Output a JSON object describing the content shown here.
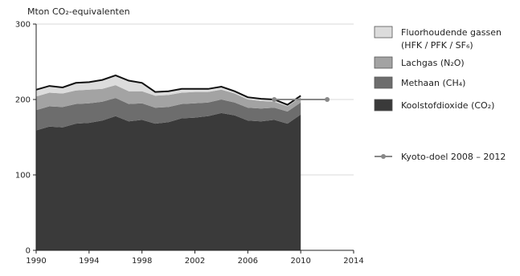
{
  "chart_data": {
    "type": "area",
    "stacked": true,
    "ylabel": "Mton CO₂-equivalenten",
    "xlim": [
      1990,
      2014
    ],
    "ylim": [
      0,
      300
    ],
    "x_ticks": [
      1990,
      1994,
      1998,
      2002,
      2006,
      2010,
      2014
    ],
    "y_ticks": [
      0,
      100,
      200,
      300
    ],
    "grid": true,
    "legend_position": "right",
    "x": [
      1990,
      1991,
      1992,
      1993,
      1994,
      1995,
      1996,
      1997,
      1998,
      1999,
      2000,
      2001,
      2002,
      2003,
      2004,
      2005,
      2006,
      2007,
      2008,
      2009,
      2010
    ],
    "series": [
      {
        "name": "Koolstofdioxide (CO₂)",
        "color": "#3a3a3a",
        "values": [
          159,
          164,
          163,
          168,
          169,
          172,
          178,
          171,
          173,
          168,
          170,
          175,
          176,
          178,
          182,
          179,
          172,
          171,
          173,
          168,
          180
        ]
      },
      {
        "name": "Methaan (CH₄)",
        "color": "#6d6d6d",
        "values": [
          27,
          27,
          27,
          26,
          26,
          25,
          24,
          23,
          22,
          21,
          20,
          19,
          19,
          18,
          18,
          17,
          17,
          17,
          16,
          16,
          16
        ]
      },
      {
        "name": "Lachgas (N₂O)",
        "color": "#a3a3a3",
        "values": [
          18,
          18,
          18,
          18,
          18,
          17,
          17,
          17,
          16,
          16,
          16,
          15,
          15,
          14,
          13,
          12,
          11,
          10,
          8,
          7,
          7
        ]
      },
      {
        "name": "Fluorhoudende gassen (HFK / PFK / SF₆)",
        "color": "#dcdcdc",
        "values": [
          9,
          9,
          8,
          10,
          10,
          12,
          13,
          14,
          11,
          5,
          5,
          5,
          4,
          4,
          4,
          3,
          3,
          3,
          3,
          2,
          2
        ]
      }
    ],
    "target": {
      "name": "Kyoto-doel 2008 – 2012",
      "value": 200,
      "x_range": [
        2008,
        2012
      ],
      "color": "#888888"
    }
  }
}
